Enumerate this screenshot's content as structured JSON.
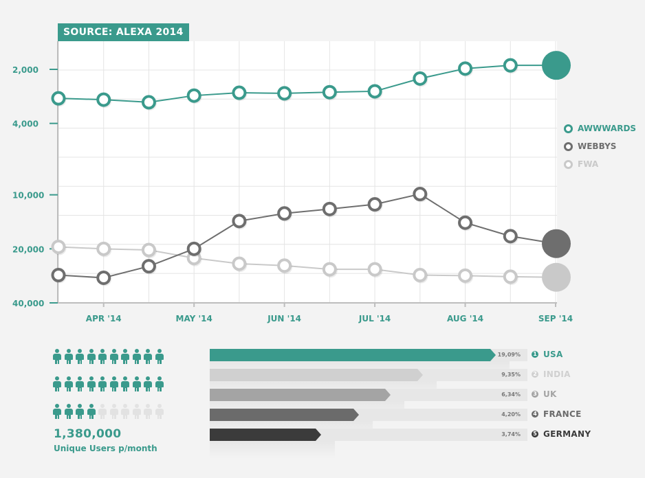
{
  "source_label": "SOURCE: ALEXA 2014",
  "chart_data": {
    "type": "line",
    "y_scale": "log-reversed",
    "y_ticks": [
      2000,
      4000,
      10000,
      20000,
      40000
    ],
    "y_tick_labels": [
      "2,000",
      "4,000",
      "10,000",
      "20,000",
      "40,000"
    ],
    "x_tick_labels": [
      "APR '14",
      "MAY '14",
      "JUN '14",
      "JUL '14",
      "AUG '14",
      "SEP '14"
    ],
    "points_per_series": 12,
    "grid": true,
    "legend_position": "right",
    "series": [
      {
        "name": "AWWWARDS",
        "color": "#3a9a8c",
        "values": [
          2900,
          2950,
          3050,
          2800,
          2700,
          2720,
          2680,
          2650,
          2250,
          1980,
          1900,
          1900
        ]
      },
      {
        "name": "WEBBYS",
        "color": "#6e6e6e",
        "values": [
          28000,
          29000,
          25000,
          20000,
          14000,
          12700,
          12000,
          11300,
          9900,
          14300,
          17000,
          18700
        ]
      },
      {
        "name": "FWA",
        "color": "#c9c9c9",
        "values": [
          19500,
          20000,
          20300,
          22500,
          24200,
          24800,
          26000,
          26000,
          28000,
          28200,
          28600,
          28800
        ]
      }
    ]
  },
  "users": {
    "count": "1,380,000",
    "label": "Unique Users p/month",
    "filled_fraction": 0.8
  },
  "countries": [
    {
      "rank": "1",
      "name": "USA",
      "percent": "19,09%",
      "fill_fraction": 0.9,
      "color": "#3a9a8c"
    },
    {
      "rank": "2",
      "name": "INDIA",
      "percent": "9,35%",
      "fill_fraction": 0.67,
      "color": "#d0d0d0"
    },
    {
      "rank": "3",
      "name": "UK",
      "percent": "6,34%",
      "fill_fraction": 0.57,
      "color": "#a4a4a4"
    },
    {
      "rank": "4",
      "name": "FRANCE",
      "percent": "4,20%",
      "fill_fraction": 0.47,
      "color": "#6b6b6b"
    },
    {
      "rank": "5",
      "name": "GERMANY",
      "percent": "3,74%",
      "fill_fraction": 0.35,
      "color": "#3b3b3b"
    }
  ]
}
